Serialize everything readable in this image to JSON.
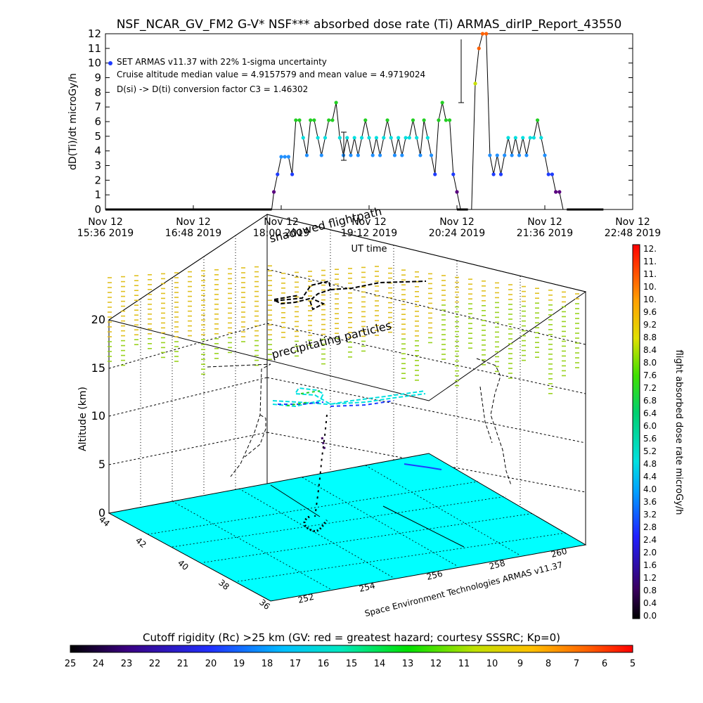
{
  "title": "NSF_NCAR_GV_FM2 G-V* NSF*** absorbed dose rate (Ti) ARMAS_dirIP_Report_43550",
  "chart_data": [
    {
      "type": "line",
      "ylabel": "dD(Ti)/dt microGy/h",
      "xlabel": "UT time",
      "ylim": [
        0,
        12
      ],
      "yticks": [
        "0",
        "1",
        "2",
        "3",
        "4",
        "5",
        "6",
        "7",
        "8",
        "9",
        "10",
        "11",
        "12"
      ],
      "xticks": [
        {
          "date": "Nov 12",
          "time": "15:36 2019"
        },
        {
          "date": "Nov 12",
          "time": "16:48 2019"
        },
        {
          "date": "Nov 12",
          "time": "18:00 2019"
        },
        {
          "date": "Nov 12",
          "time": "19:12 2019"
        },
        {
          "date": "Nov 12",
          "time": "20:24 2019"
        },
        {
          "date": "Nov 12",
          "time": "21:36 2019"
        },
        {
          "date": "Nov 12",
          "time": "22:48 2019"
        }
      ],
      "annotations": [
        "SET ARMAS v11.37 with 22% 1-sigma uncertainty",
        "Cruise altitude median value = 4.9157579 and mean value = 4.9719024",
        "D(si) -> D(ti) conversion factor C3 = 1.46302"
      ],
      "series": [
        {
          "x_hours": [
            15.6,
            16.0,
            16.5,
            17.0,
            17.5,
            17.87,
            17.9,
            17.95,
            18.0,
            18.05,
            18.1,
            18.15,
            18.2,
            18.25,
            18.3,
            18.35,
            18.4,
            18.45,
            18.5,
            18.55,
            18.6,
            18.65,
            18.7,
            18.75,
            18.8,
            18.85,
            18.9,
            18.95,
            19.0,
            19.05,
            19.1,
            19.15,
            19.2,
            19.25,
            19.3,
            19.35,
            19.4,
            19.45,
            19.5,
            19.55,
            19.6,
            19.65,
            19.7,
            19.75,
            19.8,
            19.85,
            19.9,
            19.95,
            20.0,
            20.05,
            20.1,
            20.15,
            20.2,
            20.25,
            20.3,
            20.35,
            20.4,
            20.45,
            20.5,
            20.55,
            20.6,
            20.65,
            20.7,
            20.75,
            20.8,
            20.85,
            20.9,
            20.95,
            21.0,
            21.05,
            21.1,
            21.15,
            21.2,
            21.25,
            21.3,
            21.35,
            21.4,
            21.45,
            21.5,
            21.55,
            21.6,
            21.65,
            21.7,
            21.75,
            21.8,
            21.85,
            21.9,
            22.0,
            22.4
          ],
          "values": [
            0,
            0,
            0,
            0,
            0,
            0,
            1.2,
            2.4,
            3.6,
            3.6,
            3.6,
            2.4,
            6.1,
            6.1,
            4.9,
            3.7,
            6.1,
            6.1,
            4.9,
            3.7,
            4.9,
            6.1,
            6.1,
            7.3,
            4.9,
            3.7,
            4.9,
            3.7,
            4.9,
            3.7,
            4.9,
            6.1,
            4.9,
            3.7,
            4.9,
            3.7,
            4.9,
            6.1,
            4.9,
            3.7,
            4.9,
            3.7,
            4.9,
            4.9,
            6.1,
            4.9,
            3.7,
            6.1,
            4.9,
            3.7,
            2.4,
            6.1,
            7.3,
            6.1,
            6.1,
            2.4,
            1.2,
            0,
            0,
            0,
            0,
            8.6,
            11,
            12,
            12,
            3.7,
            2.4,
            3.7,
            2.4,
            3.7,
            4.9,
            3.7,
            4.9,
            3.7,
            4.9,
            3.7,
            4.9,
            4.9,
            6.1,
            4.9,
            3.7,
            2.4,
            2.4,
            1.2,
            1.2,
            0,
            0,
            0,
            0
          ]
        }
      ]
    },
    {
      "type": "scatter",
      "ylabel": "Altitude (km)",
      "annotations": [
        "shadowed flightpath",
        "precipitating particles",
        "Space Environment Technologies ARMAS v11.37"
      ],
      "z_ticks": [
        "0",
        "5",
        "10",
        "15",
        "20"
      ],
      "lat_ticks": [
        "44",
        "42",
        "40",
        "38",
        "36"
      ],
      "lon_ticks": [
        "252",
        "254",
        "256",
        "258",
        "260"
      ]
    }
  ],
  "colorbar_right": {
    "label": "flight absorbed dose rate microGy/h",
    "ticks": [
      "0.0",
      "0.4",
      "0.8",
      "1.2",
      "1.6",
      "2.0",
      "2.4",
      "2.8",
      "3.2",
      "3.6",
      "4.0",
      "4.4",
      "4.8",
      "5.2",
      "5.6",
      "6.0",
      "6.4",
      "6.8",
      "7.2",
      "7.6",
      "8.0",
      "8.4",
      "8.8",
      "9.2",
      "9.6",
      "10.",
      "10.",
      "11.",
      "11.",
      "12."
    ]
  },
  "colorbar_bottom": {
    "label": "Cutoff rigidity (Rc) >25 km (GV: red = greatest hazard; courtesy SSSRC; Kp=0)",
    "ticks": [
      "25",
      "24",
      "23",
      "22",
      "21",
      "20",
      "19",
      "18",
      "17",
      "16",
      "15",
      "14",
      "13",
      "12",
      "11",
      "10",
      "9",
      "8",
      "7",
      "6",
      "5"
    ]
  },
  "colors": {
    "ground": "#00ffff",
    "dose_low": "#1e3cff",
    "dose_mid": "#00e6e6",
    "dose_high": "#22d022"
  }
}
